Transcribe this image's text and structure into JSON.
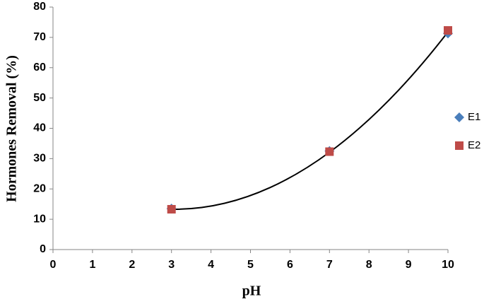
{
  "chart_data": {
    "type": "scatter",
    "x_label": "pH",
    "y_label": "Hormones Removal (%)",
    "xlim": [
      0,
      10
    ],
    "xticks": [
      0,
      1,
      2,
      3,
      4,
      5,
      6,
      7,
      8,
      9,
      10
    ],
    "ylim": [
      0,
      80
    ],
    "yticks": [
      0,
      10,
      20,
      30,
      40,
      50,
      60,
      70,
      80
    ],
    "grid": false,
    "legend": "right",
    "series": [
      {
        "name": "E1",
        "color": "#4a7ebb",
        "marker": "diamond",
        "x": [
          3,
          7,
          10
        ],
        "values": [
          13.5,
          32.5,
          71.3
        ]
      },
      {
        "name": "E2",
        "color": "#be4b48",
        "marker": "square",
        "x": [
          3,
          7,
          10
        ],
        "values": [
          13.3,
          32.3,
          72.3
        ]
      }
    ],
    "trendline": {
      "color": "#000000",
      "x": [
        3,
        7,
        10
      ],
      "values": [
        13.3,
        32.1,
        71.8
      ]
    }
  }
}
